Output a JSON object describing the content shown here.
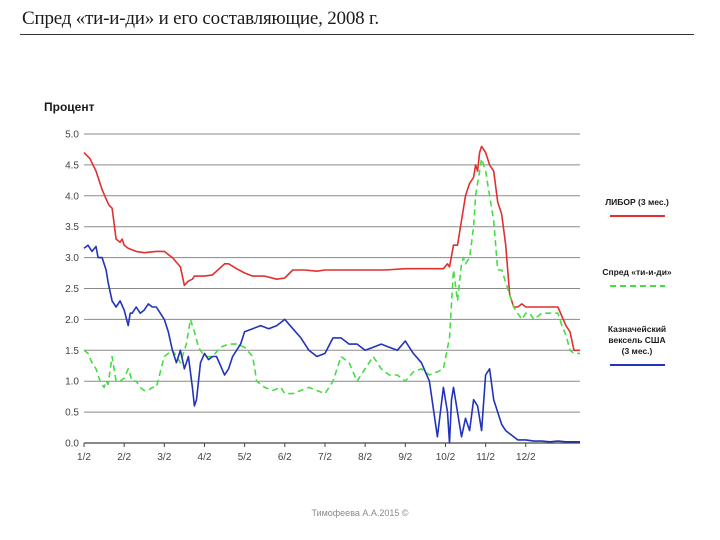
{
  "slide": {
    "title": "Спред «ти-и-ди» и его составляющие, 2008 г.",
    "footer": "Тимофеева А.А.2015 ©"
  },
  "chart_data": {
    "type": "line",
    "title": "Спред «ти-и-ди» и его составляющие, 2008 г.",
    "ylabel": "Процент",
    "xlabel": "",
    "ylim": [
      0,
      5.0
    ],
    "yticks": [
      "0.0",
      "0.5",
      "1.0",
      "1.5",
      "2.0",
      "2.5",
      "3.0",
      "3.5",
      "4.0",
      "4.5",
      "5.0"
    ],
    "xlim": [
      0,
      12.35
    ],
    "xticks": [
      "1/2",
      "2/2",
      "3/2",
      "4/2",
      "5/2",
      "6/2",
      "7/2",
      "8/2",
      "9/2",
      "10/2",
      "11/2",
      "12/2"
    ],
    "grid": "horizontal",
    "legend_position": "right",
    "series": [
      {
        "name": "ЛИБОР (3 мес.)",
        "color": "#e03030",
        "dash": "solid",
        "x": [
          0,
          0.15,
          0.3,
          0.45,
          0.55,
          0.62,
          0.7,
          0.8,
          0.9,
          0.95,
          1.0,
          1.1,
          1.3,
          1.5,
          1.8,
          2.0,
          2.2,
          2.4,
          2.5,
          2.6,
          2.7,
          2.75,
          2.85,
          3.0,
          3.2,
          3.5,
          3.6,
          3.8,
          4.0,
          4.2,
          4.5,
          4.8,
          5.0,
          5.2,
          5.5,
          5.8,
          6.0,
          6.5,
          7.0,
          7.5,
          8.0,
          8.5,
          8.95,
          9.05,
          9.1,
          9.2,
          9.3,
          9.4,
          9.5,
          9.6,
          9.7,
          9.75,
          9.8,
          9.85,
          9.9,
          10.0,
          10.1,
          10.2,
          10.3,
          10.4,
          10.5,
          10.6,
          10.7,
          10.8,
          10.9,
          11.0,
          11.2,
          11.4,
          11.6,
          11.8,
          12.0,
          12.1,
          12.2,
          12.35
        ],
        "values": [
          4.7,
          4.6,
          4.4,
          4.1,
          3.95,
          3.85,
          3.8,
          3.3,
          3.25,
          3.3,
          3.2,
          3.15,
          3.1,
          3.08,
          3.1,
          3.1,
          3.0,
          2.85,
          2.55,
          2.62,
          2.65,
          2.7,
          2.7,
          2.7,
          2.72,
          2.9,
          2.9,
          2.82,
          2.75,
          2.7,
          2.7,
          2.65,
          2.67,
          2.8,
          2.8,
          2.78,
          2.8,
          2.8,
          2.8,
          2.8,
          2.82,
          2.82,
          2.82,
          2.9,
          2.85,
          3.2,
          3.2,
          3.6,
          4.0,
          4.2,
          4.3,
          4.5,
          4.4,
          4.7,
          4.8,
          4.7,
          4.5,
          4.4,
          3.9,
          3.7,
          3.2,
          2.4,
          2.2,
          2.2,
          2.25,
          2.2,
          2.2,
          2.2,
          2.2,
          2.2,
          1.9,
          1.8,
          1.5,
          1.5
        ]
      },
      {
        "name": "Спред «ти-и-ди»",
        "color": "#44dd44",
        "dash": "dashed",
        "x": [
          0,
          0.1,
          0.2,
          0.3,
          0.4,
          0.5,
          0.55,
          0.6,
          0.7,
          0.8,
          0.9,
          1.0,
          1.1,
          1.2,
          1.3,
          1.4,
          1.5,
          1.6,
          1.7,
          1.8,
          2.0,
          2.2,
          2.4,
          2.55,
          2.65,
          2.75,
          2.85,
          2.95,
          3.05,
          3.2,
          3.4,
          3.6,
          3.8,
          4.0,
          4.2,
          4.3,
          4.5,
          4.7,
          4.9,
          5.0,
          5.2,
          5.4,
          5.6,
          5.8,
          6.0,
          6.2,
          6.4,
          6.6,
          6.8,
          7.0,
          7.2,
          7.4,
          7.6,
          7.8,
          8.0,
          8.2,
          8.4,
          8.6,
          8.8,
          8.95,
          9.1,
          9.2,
          9.3,
          9.4,
          9.45,
          9.5,
          9.6,
          9.7,
          9.75,
          9.8,
          9.85,
          9.9,
          9.95,
          10.0,
          10.1,
          10.2,
          10.25,
          10.3,
          10.4,
          10.5,
          10.6,
          10.7,
          10.8,
          10.9,
          11.0,
          11.1,
          11.2,
          11.4,
          11.6,
          11.8,
          11.9,
          12.0,
          12.1,
          12.2,
          12.35
        ],
        "values": [
          1.5,
          1.45,
          1.3,
          1.2,
          1.0,
          0.9,
          1.0,
          0.95,
          1.4,
          1.0,
          1.0,
          1.05,
          1.2,
          1.0,
          1.0,
          0.9,
          0.85,
          0.85,
          0.9,
          0.9,
          1.4,
          1.5,
          1.3,
          1.6,
          2.0,
          1.8,
          1.55,
          1.45,
          1.4,
          1.4,
          1.55,
          1.6,
          1.6,
          1.55,
          1.4,
          1.0,
          0.9,
          0.85,
          0.9,
          0.8,
          0.8,
          0.85,
          0.9,
          0.85,
          0.8,
          1.0,
          1.4,
          1.3,
          1.0,
          1.2,
          1.4,
          1.2,
          1.1,
          1.1,
          1.0,
          1.15,
          1.2,
          1.1,
          1.15,
          1.2,
          1.7,
          2.8,
          2.3,
          2.9,
          3.0,
          2.9,
          3.0,
          3.5,
          4.0,
          4.2,
          4.4,
          4.6,
          4.5,
          4.4,
          4.0,
          3.6,
          3.2,
          2.8,
          2.8,
          2.6,
          2.4,
          2.2,
          2.1,
          2.0,
          2.1,
          2.1,
          2.0,
          2.1,
          2.1,
          2.1,
          1.9,
          1.75,
          1.5,
          1.45,
          1.45
        ]
      },
      {
        "name": "Казначейский вексель США (3 мес.)",
        "color": "#2233bb",
        "dash": "solid",
        "x": [
          0,
          0.1,
          0.2,
          0.3,
          0.35,
          0.45,
          0.55,
          0.6,
          0.7,
          0.8,
          0.9,
          1.0,
          1.1,
          1.15,
          1.2,
          1.3,
          1.4,
          1.5,
          1.6,
          1.7,
          1.8,
          1.9,
          2.0,
          2.1,
          2.2,
          2.3,
          2.4,
          2.5,
          2.6,
          2.7,
          2.75,
          2.8,
          2.9,
          3.0,
          3.1,
          3.2,
          3.3,
          3.4,
          3.5,
          3.6,
          3.7,
          3.8,
          3.9,
          4.0,
          4.2,
          4.4,
          4.6,
          4.8,
          5.0,
          5.2,
          5.4,
          5.6,
          5.8,
          6.0,
          6.2,
          6.4,
          6.6,
          6.8,
          7.0,
          7.2,
          7.4,
          7.6,
          7.8,
          8.0,
          8.2,
          8.4,
          8.6,
          8.8,
          8.95,
          9.05,
          9.1,
          9.15,
          9.2,
          9.3,
          9.4,
          9.5,
          9.6,
          9.7,
          9.8,
          9.9,
          10.0,
          10.1,
          10.2,
          10.3,
          10.4,
          10.5,
          10.6,
          10.7,
          10.8,
          10.9,
          11.0,
          11.2,
          11.4,
          11.6,
          11.8,
          12.0,
          12.2,
          12.35
        ],
        "values": [
          3.15,
          3.2,
          3.1,
          3.18,
          3.0,
          3.0,
          2.8,
          2.6,
          2.3,
          2.2,
          2.3,
          2.15,
          1.9,
          2.1,
          2.1,
          2.2,
          2.1,
          2.15,
          2.25,
          2.2,
          2.2,
          2.1,
          2.0,
          1.8,
          1.5,
          1.3,
          1.5,
          1.2,
          1.4,
          0.9,
          0.6,
          0.7,
          1.3,
          1.45,
          1.35,
          1.4,
          1.4,
          1.25,
          1.1,
          1.2,
          1.4,
          1.5,
          1.6,
          1.8,
          1.85,
          1.9,
          1.85,
          1.9,
          2.0,
          1.85,
          1.7,
          1.5,
          1.4,
          1.45,
          1.7,
          1.7,
          1.6,
          1.6,
          1.5,
          1.55,
          1.6,
          1.55,
          1.5,
          1.65,
          1.45,
          1.3,
          1.0,
          0.1,
          0.9,
          0.5,
          0.0,
          0.7,
          0.9,
          0.5,
          0.1,
          0.4,
          0.2,
          0.7,
          0.6,
          0.2,
          1.1,
          1.2,
          0.7,
          0.5,
          0.3,
          0.2,
          0.15,
          0.1,
          0.05,
          0.05,
          0.05,
          0.03,
          0.03,
          0.02,
          0.03,
          0.02,
          0.02,
          0.02
        ]
      }
    ],
    "legend": [
      {
        "lines": [
          "ЛИБОР (3 мес.)"
        ]
      },
      {
        "lines": [
          "Спред «ти-и-ди»"
        ]
      },
      {
        "lines": [
          "Казначейский",
          "вексель США",
          "(3 мес.)"
        ]
      }
    ]
  }
}
